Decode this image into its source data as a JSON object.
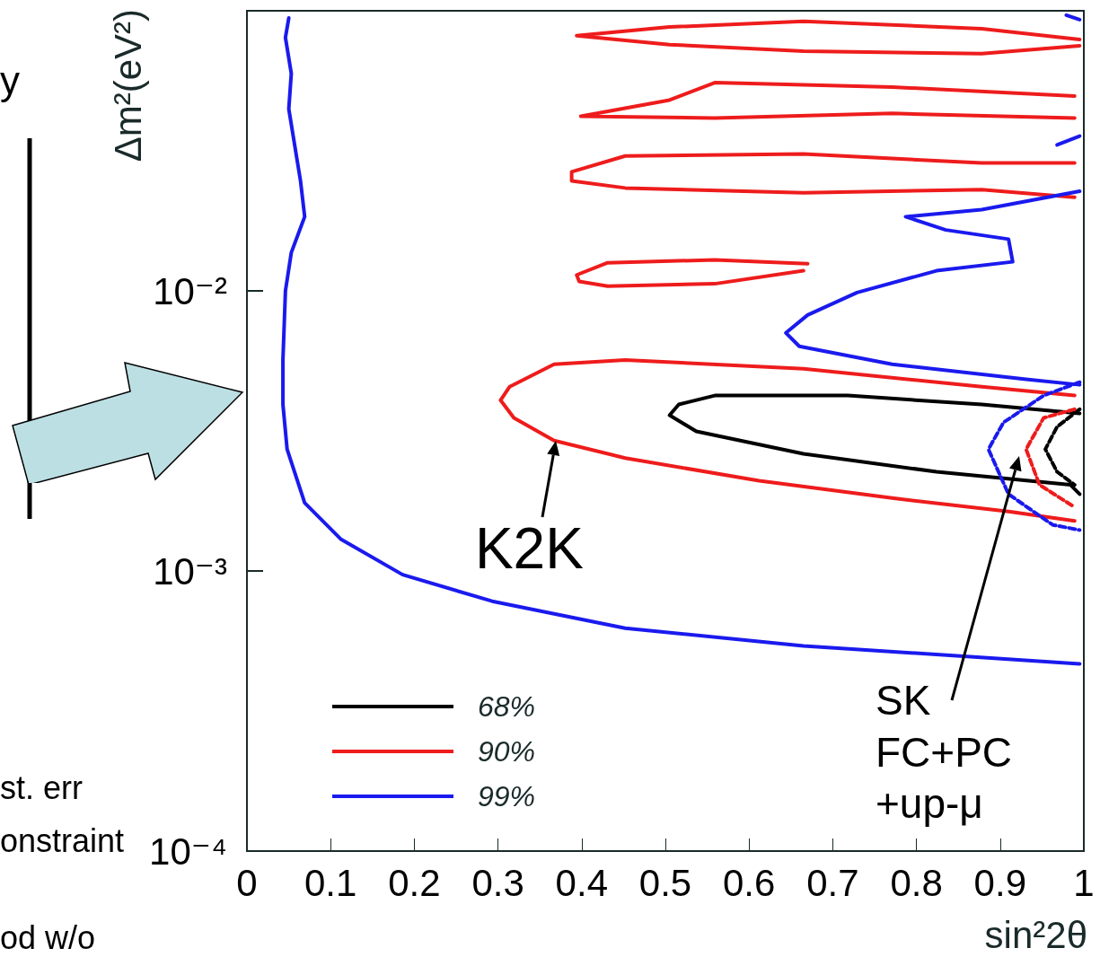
{
  "chart_data": {
    "type": "line",
    "xlabel": "sin²2θ",
    "ylabel": "Δm²(eV²)",
    "xlim": [
      0,
      1
    ],
    "xticks": [
      0,
      0.1,
      0.2,
      0.3,
      0.4,
      0.5,
      0.6,
      0.7,
      0.8,
      0.9,
      1
    ],
    "ylim": [
      0.0001,
      0.1
    ],
    "yticks": [
      {
        "value": 0.0001,
        "label": "10⁻⁴"
      },
      {
        "value": 0.001,
        "label": "10⁻³"
      },
      {
        "value": 0.01,
        "label": "10⁻²"
      }
    ],
    "log": "y",
    "grid": false,
    "legend": "bottom left",
    "series": [
      {
        "name": "68%",
        "color": "#000000",
        "x": [
          0.995,
          0.878,
          0.718,
          0.559,
          0.516,
          0.505,
          0.537,
          0.665,
          0.824,
          0.984,
          0.995
        ],
        "values": [
          0.00365,
          0.00393,
          0.00423,
          0.00423,
          0.00393,
          0.0036,
          0.00315,
          0.00262,
          0.00226,
          0.00203,
          0.00188
        ]
      },
      {
        "color": "#000000",
        "line_style": "dashed",
        "x": [
          0.995,
          0.968,
          0.954,
          0.968,
          0.989
        ],
        "values": [
          0.00378,
          0.00327,
          0.00272,
          0.00226,
          0.00203
        ]
      },
      {
        "name": "90%",
        "color": "#ee1c1c",
        "x": [
          0.989,
          0.878,
          0.665,
          0.452,
          0.367,
          0.314,
          0.303,
          0.319,
          0.367,
          0.452,
          0.612,
          0.771,
          0.91,
          0.989
        ],
        "values": [
          0.00423,
          0.00455,
          0.00527,
          0.00567,
          0.00547,
          0.00455,
          0.00407,
          0.00352,
          0.00292,
          0.00253,
          0.0021,
          0.00182,
          0.00163,
          0.00151
        ]
      },
      {
        "color": "#ee1c1c",
        "line_style": "dashed",
        "x": [
          0.989,
          0.952,
          0.931,
          0.947,
          0.989
        ],
        "values": [
          0.00378,
          0.00352,
          0.00272,
          0.00203,
          0.00169
        ]
      },
      {
        "color": "#ee1c1c",
        "x": [
          0.995,
          0.878,
          0.665,
          0.505,
          0.394,
          0.505,
          0.665,
          0.878,
          0.995
        ],
        "values": [
          0.079,
          0.0863,
          0.0917,
          0.0875,
          0.0815,
          0.0757,
          0.0718,
          0.0703,
          0.075
        ]
      },
      {
        "color": "#ee1c1c",
        "x": [
          0.989,
          0.771,
          0.559,
          0.505,
          0.399,
          0.559,
          0.771,
          0.989
        ],
        "values": [
          0.0496,
          0.0534,
          0.0554,
          0.048,
          0.042,
          0.0414,
          0.043,
          0.0414
        ]
      },
      {
        "color": "#ee1c1c",
        "x": [
          0.989,
          0.878,
          0.665,
          0.452,
          0.388,
          0.388,
          0.452,
          0.665,
          0.878,
          0.989
        ],
        "values": [
          0.0286,
          0.0286,
          0.0308,
          0.0303,
          0.0266,
          0.0247,
          0.0233,
          0.0224,
          0.023,
          0.0216
        ]
      },
      {
        "color": "#ee1c1c",
        "x": [
          0.67,
          0.559,
          0.431,
          0.394,
          0.397,
          0.431,
          0.559,
          0.665
        ],
        "values": [
          0.0125,
          0.0129,
          0.0126,
          0.0114,
          0.0108,
          0.0104,
          0.0106,
          0.0118
        ]
      },
      {
        "name": "99%",
        "color": "#1a1aee",
        "x": [
          0.05,
          0.046,
          0.053,
          0.05,
          0.064,
          0.069,
          0.053,
          0.046,
          0.043,
          0.043,
          0.048,
          0.069,
          0.112,
          0.186,
          0.293,
          0.452,
          0.665,
          0.995
        ],
        "values": [
          0.0942,
          0.0802,
          0.0597,
          0.0446,
          0.0247,
          0.0184,
          0.0137,
          0.01,
          0.00567,
          0.00393,
          0.00272,
          0.00175,
          0.0013,
          0.00097,
          0.00078,
          0.000625,
          0.00054,
          0.000466
        ]
      },
      {
        "color": "#1a1aee",
        "x": [
          0.995,
          0.878,
          0.787,
          0.835,
          0.91,
          0.915,
          0.824,
          0.729,
          0.67,
          0.644,
          0.66,
          0.771,
          0.931,
          0.995
        ],
        "values": [
          0.0227,
          0.0195,
          0.0184,
          0.0165,
          0.0153,
          0.0127,
          0.0118,
          0.00986,
          0.0082,
          0.00708,
          0.00634,
          0.00547,
          0.00483,
          0.00462
        ]
      },
      {
        "color": "#1a1aee",
        "line_style": "dashed",
        "x": [
          0.995,
          0.952,
          0.904,
          0.886,
          0.91,
          0.963,
          0.995
        ],
        "values": [
          0.00472,
          0.00423,
          0.00339,
          0.00272,
          0.00188,
          0.00146,
          0.0014
        ]
      },
      {
        "color": "#1a1aee",
        "x": [
          0.979,
          0.995
        ],
        "values": [
          0.0964,
          0.0929
        ]
      },
      {
        "color": "#1a1aee",
        "x": [
          0.968,
          0.995
        ],
        "values": [
          0.0332,
          0.0357
        ]
      }
    ],
    "annotations": [
      {
        "text": "K2K",
        "x": 0.369,
        "y": 0.00292
      },
      "SK\nFC+PC\n+up-μ",
      "y",
      "st. err",
      "onstraint",
      "od w/o"
    ]
  }
}
